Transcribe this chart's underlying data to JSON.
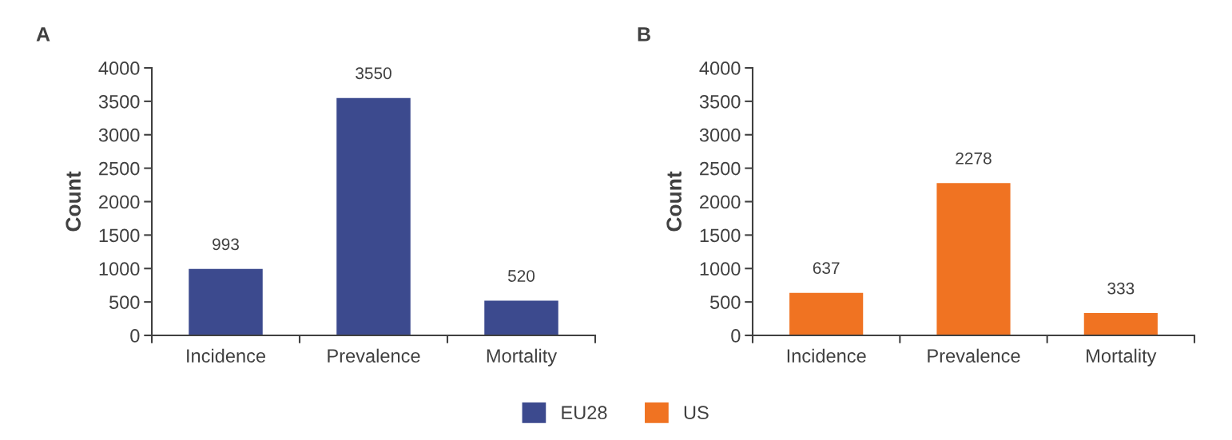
{
  "chart_data": [
    {
      "type": "bar",
      "title": "A",
      "ylabel": "Count",
      "categories": [
        "Incidence",
        "Prevalence",
        "Mortality"
      ],
      "series": [
        {
          "name": "EU28",
          "color": "#3c4a8e",
          "values": [
            993,
            3550,
            520
          ]
        }
      ],
      "ylim": [
        0,
        4000
      ],
      "yticks": [
        0,
        500,
        1000,
        1500,
        2000,
        2500,
        3000,
        3500,
        4000
      ],
      "data_labels": true,
      "grid": false,
      "legend": "bottom"
    },
    {
      "type": "bar",
      "title": "B",
      "ylabel": "Count",
      "categories": [
        "Incidence",
        "Prevalence",
        "Mortality"
      ],
      "series": [
        {
          "name": "US",
          "color": "#f07322",
          "values": [
            637,
            2278,
            333
          ]
        }
      ],
      "ylim": [
        0,
        4000
      ],
      "yticks": [
        0,
        500,
        1000,
        1500,
        2000,
        2500,
        3000,
        3500,
        4000
      ],
      "data_labels": true,
      "grid": false,
      "legend": "bottom"
    }
  ]
}
